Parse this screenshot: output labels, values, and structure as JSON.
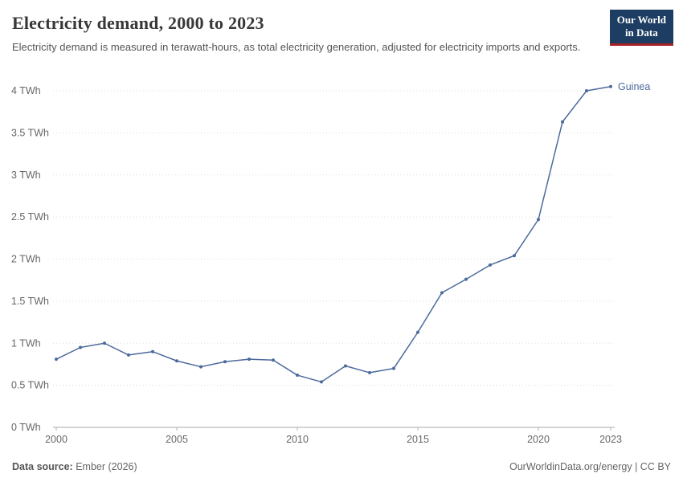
{
  "header": {
    "title": "Electricity demand, 2000 to 2023",
    "subtitle": "Electricity demand is measured in terawatt-hours, as total electricity generation, adjusted for electricity imports and exports.",
    "logo": {
      "line1": "Our World",
      "line2": "in Data"
    }
  },
  "chart_data": {
    "type": "line",
    "title": "Electricity demand, 2000 to 2023",
    "xlabel": "",
    "ylabel": "TWh",
    "ylim": [
      0,
      4
    ],
    "grid": "dotted-horizontal",
    "legend_position": "end-of-line-label",
    "x": [
      2000,
      2001,
      2002,
      2003,
      2004,
      2005,
      2006,
      2007,
      2008,
      2009,
      2010,
      2011,
      2012,
      2013,
      2014,
      2015,
      2016,
      2017,
      2018,
      2019,
      2020,
      2021,
      2022,
      2023
    ],
    "series": [
      {
        "name": "Guinea",
        "values": [
          0.81,
          0.95,
          1.0,
          0.86,
          0.9,
          0.79,
          0.72,
          0.78,
          0.81,
          0.8,
          0.62,
          0.54,
          0.73,
          0.65,
          0.7,
          1.13,
          1.6,
          1.76,
          1.93,
          2.04,
          2.47,
          3.63,
          4.0,
          4.05
        ]
      }
    ],
    "yticks": [
      {
        "value": 0,
        "label": "0 TWh"
      },
      {
        "value": 0.5,
        "label": "0.5 TWh"
      },
      {
        "value": 1,
        "label": "1 TWh"
      },
      {
        "value": 1.5,
        "label": "1.5 TWh"
      },
      {
        "value": 2,
        "label": "2 TWh"
      },
      {
        "value": 2.5,
        "label": "2.5 TWh"
      },
      {
        "value": 3,
        "label": "3 TWh"
      },
      {
        "value": 3.5,
        "label": "3.5 TWh"
      },
      {
        "value": 4,
        "label": "4 TWh"
      }
    ],
    "xticks": [
      2000,
      2005,
      2010,
      2015,
      2020,
      2023
    ]
  },
  "colors": {
    "line": "#4c6a9c",
    "grid": "#dcdcdc",
    "axis": "#a8a8a8",
    "tick": "#b3b3b3",
    "tick_text": "#666666",
    "logo_bg": "#1d3d63",
    "logo_accent": "#a82127"
  },
  "footer": {
    "source_label": "Data source:",
    "source_value": " Ember (2026)",
    "right_link": "OurWorldinData.org/energy | CC BY"
  }
}
